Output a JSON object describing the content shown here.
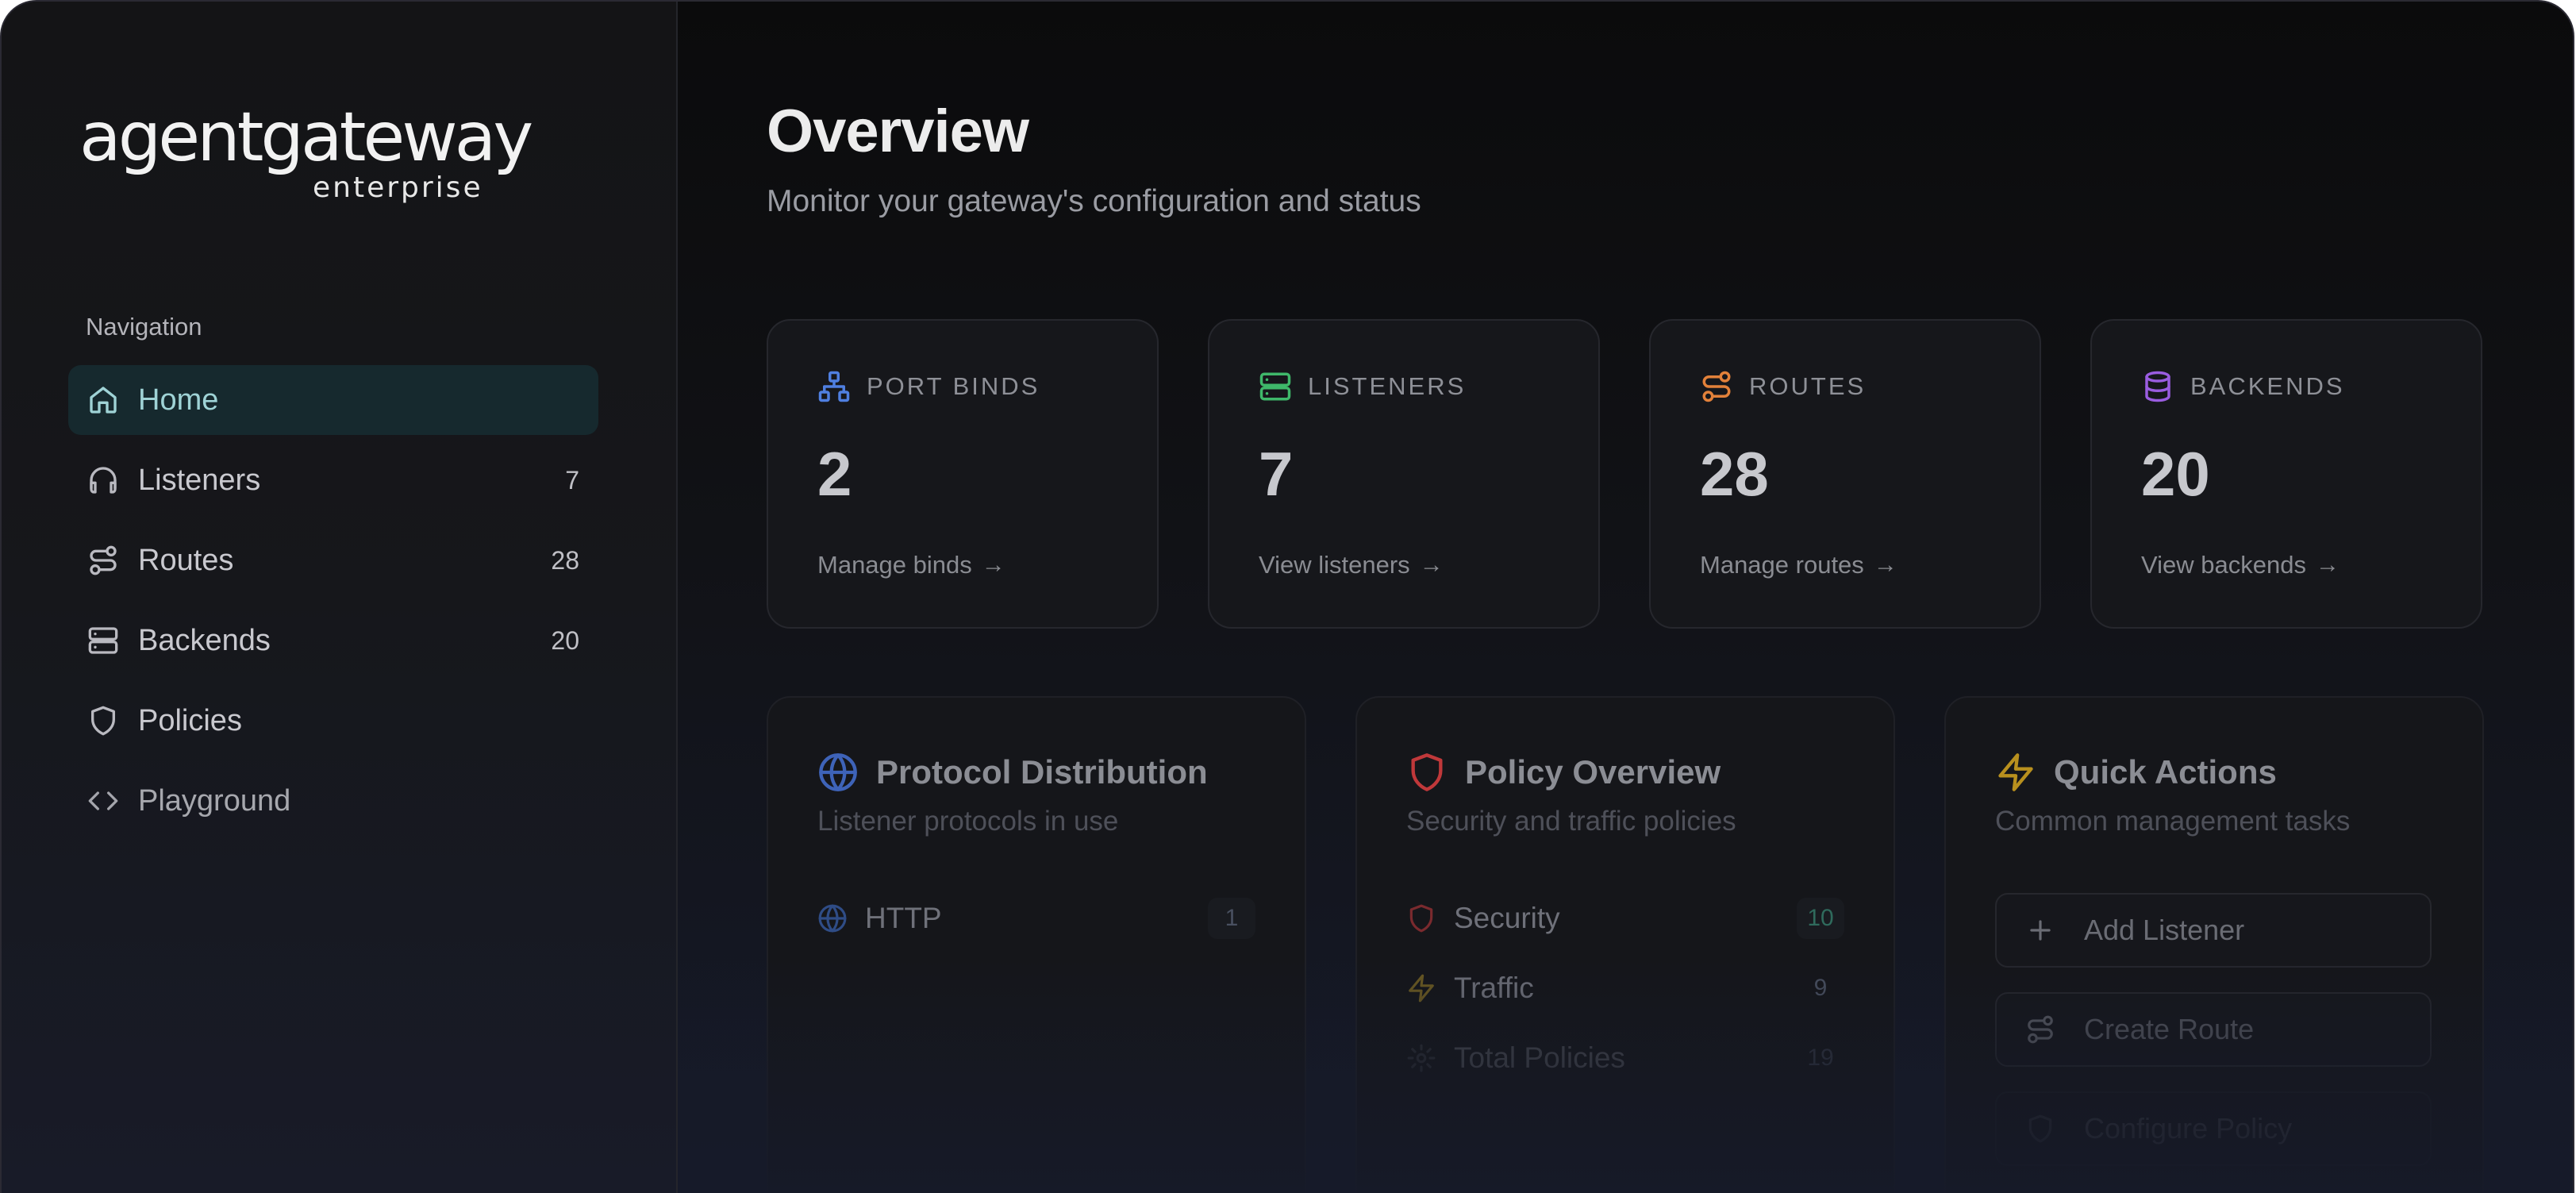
{
  "brand": {
    "name": "agentgateway",
    "edition": "enterprise"
  },
  "sidebar": {
    "heading": "Navigation",
    "items": [
      {
        "label": "Home",
        "count": "",
        "icon": "home-icon",
        "active": true
      },
      {
        "label": "Listeners",
        "count": "7",
        "icon": "headphones-icon"
      },
      {
        "label": "Routes",
        "count": "28",
        "icon": "route-icon"
      },
      {
        "label": "Backends",
        "count": "20",
        "icon": "server-icon"
      },
      {
        "label": "Policies",
        "count": "",
        "icon": "shield-icon"
      },
      {
        "label": "Playground",
        "count": "",
        "icon": "code-icon"
      }
    ]
  },
  "page": {
    "title": "Overview",
    "subtitle": "Monitor your gateway's configuration and status"
  },
  "stats": [
    {
      "label": "PORT BINDS",
      "value": "2",
      "link": "Manage binds",
      "icon": "network-icon",
      "color": "#4f7fe0"
    },
    {
      "label": "LISTENERS",
      "value": "7",
      "link": "View listeners",
      "icon": "server-icon",
      "color": "#3fb86a"
    },
    {
      "label": "ROUTES",
      "value": "28",
      "link": "Manage routes",
      "icon": "route-icon",
      "color": "#e2813a"
    },
    {
      "label": "BACKENDS",
      "value": "20",
      "link": "View backends",
      "icon": "database-icon",
      "color": "#9a5de0"
    }
  ],
  "panels": {
    "protocol": {
      "title": "Protocol Distribution",
      "subtitle": "Listener protocols in use",
      "rows": [
        {
          "label": "HTTP",
          "count": "1",
          "icon": "globe-icon"
        }
      ]
    },
    "policy": {
      "title": "Policy Overview",
      "subtitle": "Security and traffic policies",
      "rows": [
        {
          "label": "Security",
          "count": "10",
          "icon": "shield-icon"
        },
        {
          "label": "Traffic",
          "count": "9",
          "icon": "zap-icon"
        },
        {
          "label": "Total Policies",
          "count": "19",
          "icon": "gear-icon"
        }
      ]
    },
    "actions": {
      "title": "Quick Actions",
      "subtitle": "Common management tasks",
      "items": [
        {
          "label": "Add Listener",
          "icon": "plus-icon"
        },
        {
          "label": "Create Route",
          "icon": "route-icon"
        },
        {
          "label": "Configure Policy",
          "icon": "shield-icon"
        }
      ]
    }
  },
  "colors": {
    "accent": "#9fd3d6",
    "protocol_icon": "#3e63b8",
    "policy_icon": "#c0383a",
    "actions_icon": "#b8901e"
  }
}
